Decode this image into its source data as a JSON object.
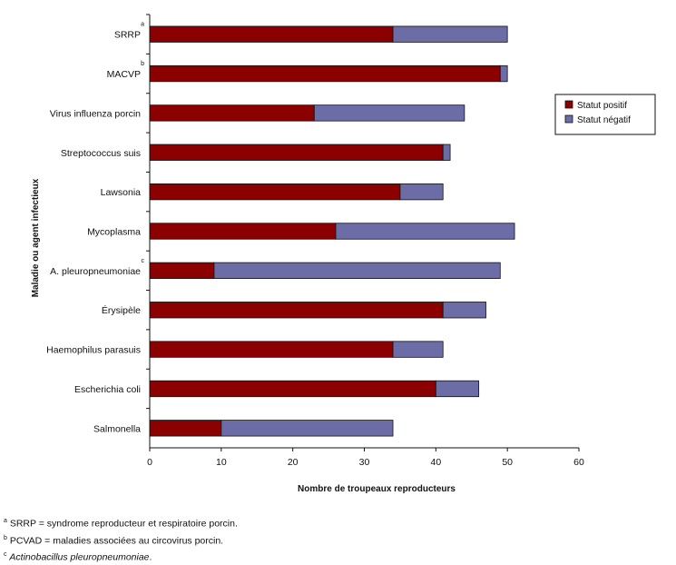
{
  "chart_data": {
    "type": "bar",
    "orientation": "horizontal",
    "stacked": true,
    "categories": [
      "SRRP",
      "MACVP",
      "Virus influenza porcin",
      "Streptococcus suis",
      "Lawsonia",
      "Mycoplasma",
      "A. pleuropneumoniae",
      "Érysipèle",
      "Haemophilus parasuis",
      "Escherichia coli",
      "Salmonella"
    ],
    "category_superscripts": [
      "a",
      "b",
      "",
      "",
      "",
      "",
      "c",
      "",
      "",
      "",
      ""
    ],
    "series": [
      {
        "name": "Statut positif",
        "color": "#8b0000",
        "values": [
          34,
          49,
          23,
          41,
          35,
          26,
          9,
          41,
          34,
          40,
          10
        ]
      },
      {
        "name": "Statut négatif",
        "color": "#6c6ca6",
        "values": [
          16,
          1,
          21,
          1,
          6,
          25,
          40,
          6,
          7,
          6,
          24
        ]
      }
    ],
    "xlabel": "Nombre de troupeaux reproducteurs",
    "ylabel": "Maladie ou agent infectieux",
    "xlim": [
      0,
      60
    ],
    "xticks": [
      "0",
      "10",
      "20",
      "30",
      "40",
      "50",
      "60"
    ],
    "grid": false,
    "legend_position": "right"
  },
  "footnotes": [
    {
      "sup": "a",
      "text": "SRRP = syndrome reproducteur et respiratoire porcin.",
      "italic": false
    },
    {
      "sup": "b",
      "text": "PCVAD = maladies associées au circovirus porcin.",
      "italic": false
    },
    {
      "sup": "c",
      "text": "Actinobacillus pleuropneumoniae",
      "suffix": ".",
      "italic": true
    }
  ]
}
